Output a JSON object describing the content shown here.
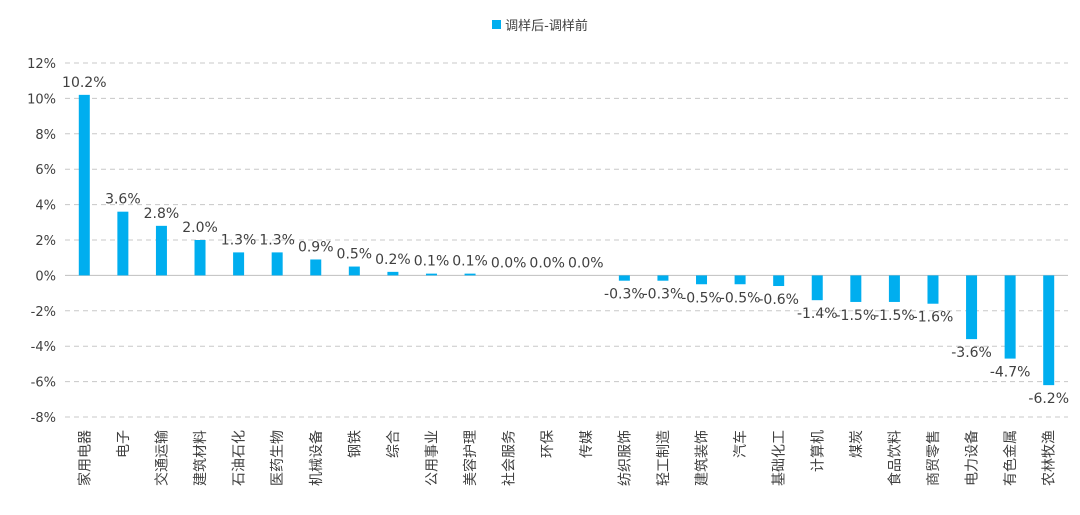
{
  "chart_data": {
    "type": "bar",
    "legend": {
      "label": "调样后-调样前",
      "position": "top-center"
    },
    "categories": [
      "家用电器",
      "电子",
      "交通运输",
      "建筑材料",
      "石油石化",
      "医药生物",
      "机械设备",
      "钢铁",
      "综合",
      "公用事业",
      "美容护理",
      "社会服务",
      "环保",
      "传媒",
      "纺织服饰",
      "轻工制造",
      "建筑装饰",
      "汽车",
      "基础化工",
      "计算机",
      "煤炭",
      "食品饮料",
      "商贸零售",
      "电力设备",
      "有色金属",
      "农林牧渔"
    ],
    "values": [
      10.2,
      3.6,
      2.8,
      2.0,
      1.3,
      1.3,
      0.9,
      0.5,
      0.2,
      0.1,
      0.1,
      0.0,
      0.0,
      0.0,
      -0.3,
      -0.3,
      -0.5,
      -0.5,
      -0.6,
      -1.4,
      -1.5,
      -1.5,
      -1.6,
      -3.6,
      -4.7,
      -6.2
    ],
    "data_labels": [
      "10.2%",
      "3.6%",
      "2.8%",
      "2.0%",
      "1.3%",
      "1.3%",
      "0.9%",
      "0.5%",
      "0.2%",
      "0.1%",
      "0.1%",
      "0.0%",
      "0.0%",
      "0.0%",
      "-0.3%",
      "-0.3%",
      "-0.5%",
      "-0.5%",
      "-0.6%",
      "-1.4%",
      "-1.5%",
      "-1.5%",
      "-1.6%",
      "-3.6%",
      "-4.7%",
      "-6.2%"
    ],
    "ylim": [
      -8,
      12
    ],
    "y_ticks": [
      -8,
      -6,
      -4,
      -2,
      0,
      2,
      4,
      6,
      8,
      10,
      12
    ],
    "y_tick_labels": [
      "-8%",
      "-6%",
      "-4%",
      "-2%",
      "0%",
      "2%",
      "4%",
      "6%",
      "8%",
      "10%",
      "12%"
    ],
    "grid": true,
    "title": "",
    "xlabel": "",
    "ylabel": "",
    "bar_color": "#00AEEF"
  }
}
